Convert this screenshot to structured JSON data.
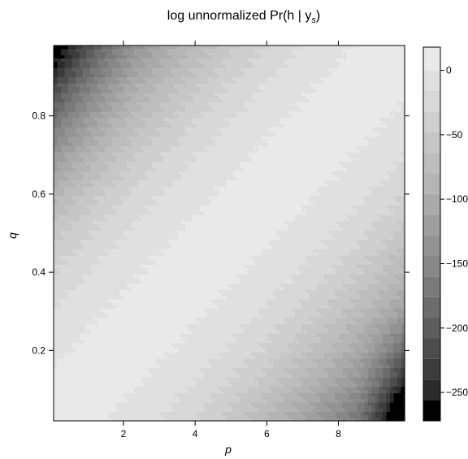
{
  "chart_data": {
    "type": "heatmap",
    "title": "log unnormalized Pr(h | y",
    "title_subscript": "s",
    "title_close": ")",
    "xlabel": "p",
    "ylabel": "q",
    "xlim": [
      0.05,
      9.85
    ],
    "ylim": [
      0.02,
      0.98
    ],
    "x_ticks": [
      2,
      4,
      6,
      8
    ],
    "x_tick_labels": [
      "2",
      "4",
      "6",
      "8"
    ],
    "y_ticks": [
      0.2,
      0.4,
      0.6,
      0.8
    ],
    "y_tick_labels": [
      "0.2",
      "0.4",
      "0.6",
      "0.8"
    ],
    "colorkey": {
      "range": [
        -272,
        18
      ],
      "ticks": [
        0,
        -50,
        -100,
        -150,
        -200,
        -250
      ],
      "tick_labels": [
        "0",
        "−50",
        "−100",
        "−150",
        "−200",
        "−250"
      ],
      "levels": [
        18,
        0,
        -16,
        -32,
        -48,
        -64,
        -80,
        -96,
        -112,
        -128,
        -144,
        -160,
        -176,
        -192,
        -208,
        -224,
        -240,
        -256,
        -272
      ],
      "colors": [
        "#e9e9e9",
        "#e0e0e0",
        "#d8d8d8",
        "#cfcfcf",
        "#c6c6c6",
        "#bdbdbd",
        "#b4b4b4",
        "#aaaaaa",
        "#9f9f9f",
        "#939393",
        "#878787",
        "#7a7a7a",
        "#6c6c6c",
        "#5d5d5d",
        "#4d4d4d",
        "#3c3c3c",
        "#2a2a2a",
        "#000000"
      ]
    },
    "ridge": {
      "description_free": true,
      "points": [
        [
          0.05,
          0.02
        ],
        [
          9.85,
          0.98
        ]
      ]
    },
    "grid": false
  }
}
